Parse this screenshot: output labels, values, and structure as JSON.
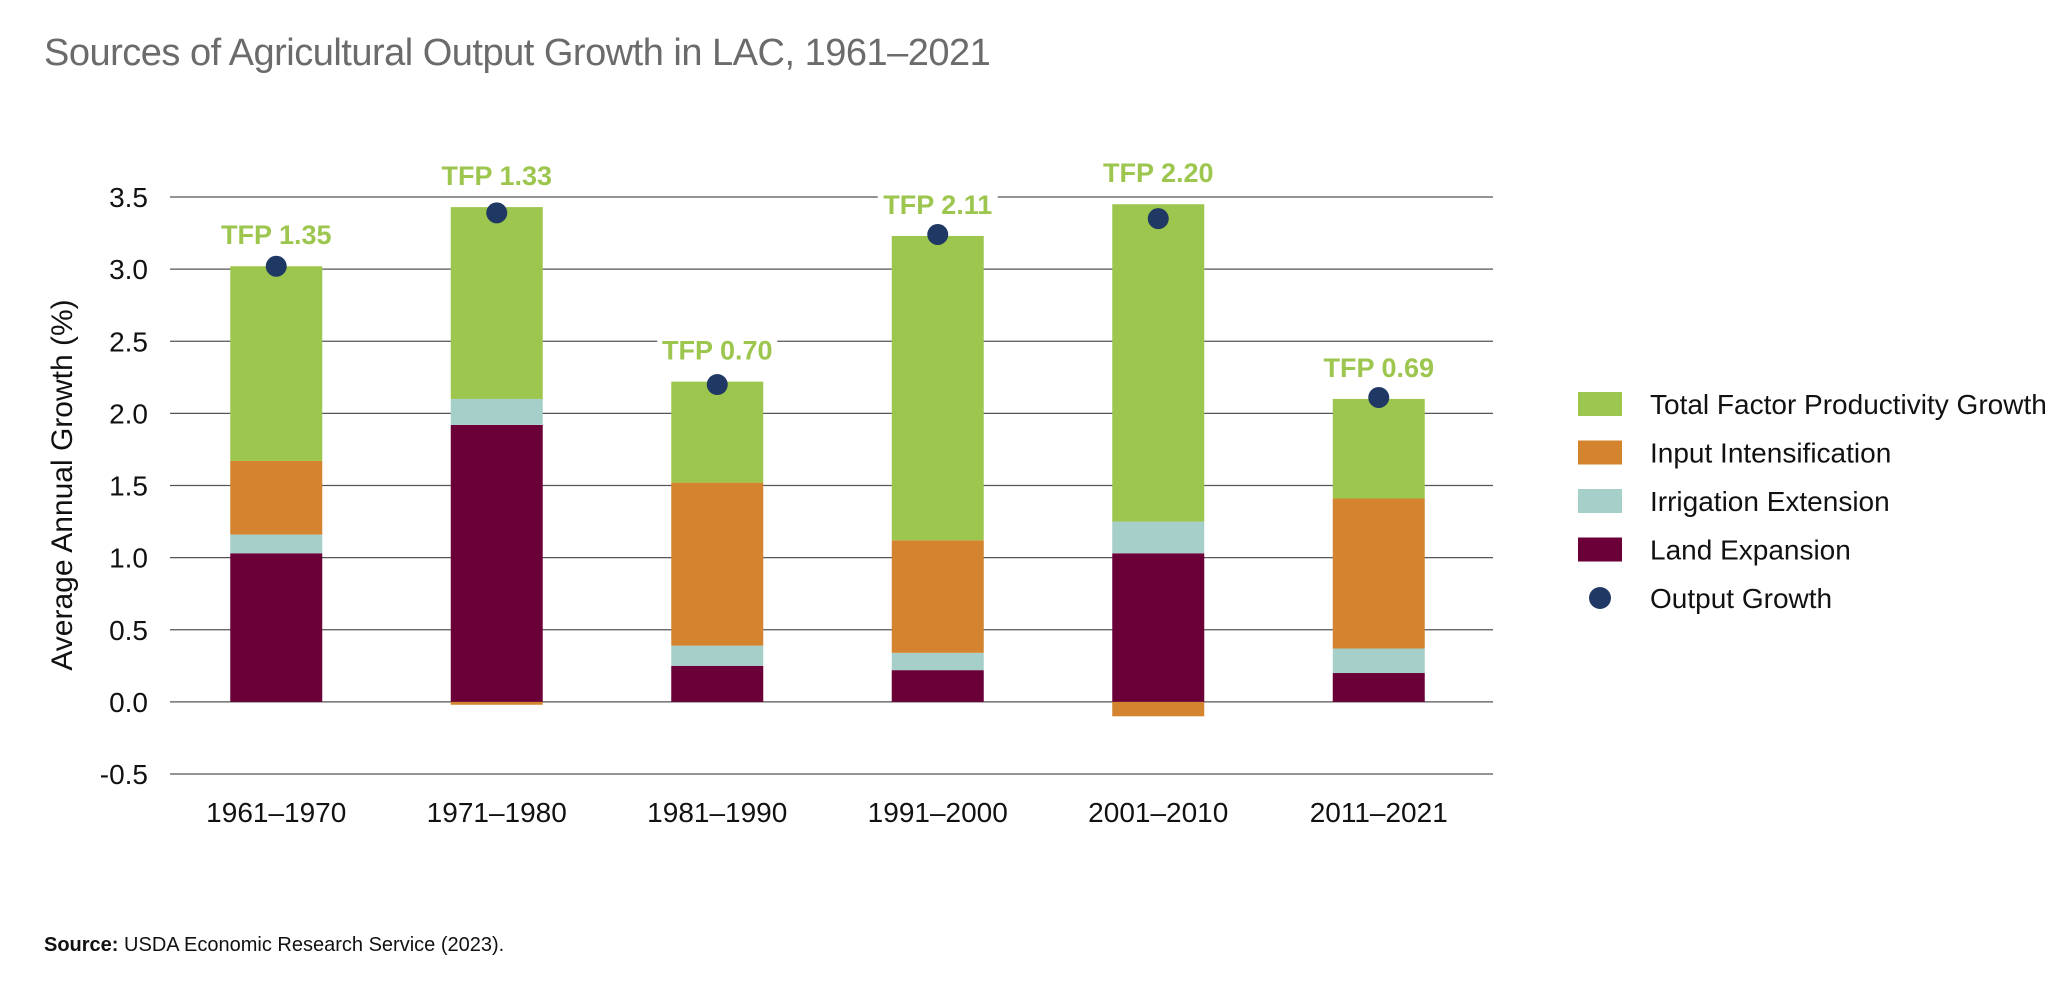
{
  "title": "Sources of Agricultural Output Growth in LAC, 1961–2021",
  "source": {
    "label": "Source:",
    "text": "USDA Economic Research Service (2023)."
  },
  "colors": {
    "tfp": "#9dc64f",
    "input": "#d4842e",
    "irrigation": "#a6cfca",
    "land": "#6b0039",
    "output": "#1f3864",
    "grid": "#555555",
    "title": "#6b6b6b"
  },
  "chart_data": {
    "type": "bar",
    "stacked": true,
    "title": "Sources of Agricultural Output Growth in LAC, 1961–2021",
    "xlabel": "",
    "ylabel": "Average Annual Growth (%)",
    "ylim": [
      -0.5,
      3.5
    ],
    "yticks": [
      "-0.5",
      "0.0",
      "0.5",
      "1.0",
      "1.5",
      "2.0",
      "2.5",
      "3.0",
      "3.5"
    ],
    "grid": true,
    "legend_position": "right",
    "categories": [
      "1961–1970",
      "1971–1980",
      "1981–1990",
      "1991–2000",
      "2001–2010",
      "2011–2021"
    ],
    "series": [
      {
        "name": "Land Expansion",
        "color_key": "land",
        "values": [
          1.03,
          1.92,
          0.25,
          0.22,
          1.03,
          0.2
        ]
      },
      {
        "name": "Irrigation Extension",
        "color_key": "irrigation",
        "values": [
          0.13,
          0.18,
          0.14,
          0.12,
          0.22,
          0.17
        ]
      },
      {
        "name": "Input Intensification",
        "color_key": "input",
        "values": [
          0.51,
          -0.02,
          1.13,
          0.78,
          -0.1,
          1.04
        ]
      },
      {
        "name": "Total Factor Productivity Growth",
        "color_key": "tfp",
        "values": [
          1.35,
          1.33,
          0.7,
          2.11,
          2.2,
          0.69
        ]
      }
    ],
    "output_growth": {
      "name": "Output Growth",
      "values": [
        3.02,
        3.39,
        2.2,
        3.24,
        3.35,
        2.11
      ]
    },
    "annotations": [
      "TFP 1.35",
      "TFP 1.33",
      "TFP 0.70",
      "TFP 2.11",
      "TFP 2.20",
      "TFP 0.69"
    ],
    "legend": [
      {
        "label": "Total Factor Productivity Growth",
        "color_key": "tfp",
        "shape": "square"
      },
      {
        "label": "Input Intensification",
        "color_key": "input",
        "shape": "square"
      },
      {
        "label": "Irrigation Extension",
        "color_key": "irrigation",
        "shape": "square"
      },
      {
        "label": "Land Expansion",
        "color_key": "land",
        "shape": "square"
      },
      {
        "label": "Output Growth",
        "color_key": "output",
        "shape": "circle"
      }
    ]
  }
}
